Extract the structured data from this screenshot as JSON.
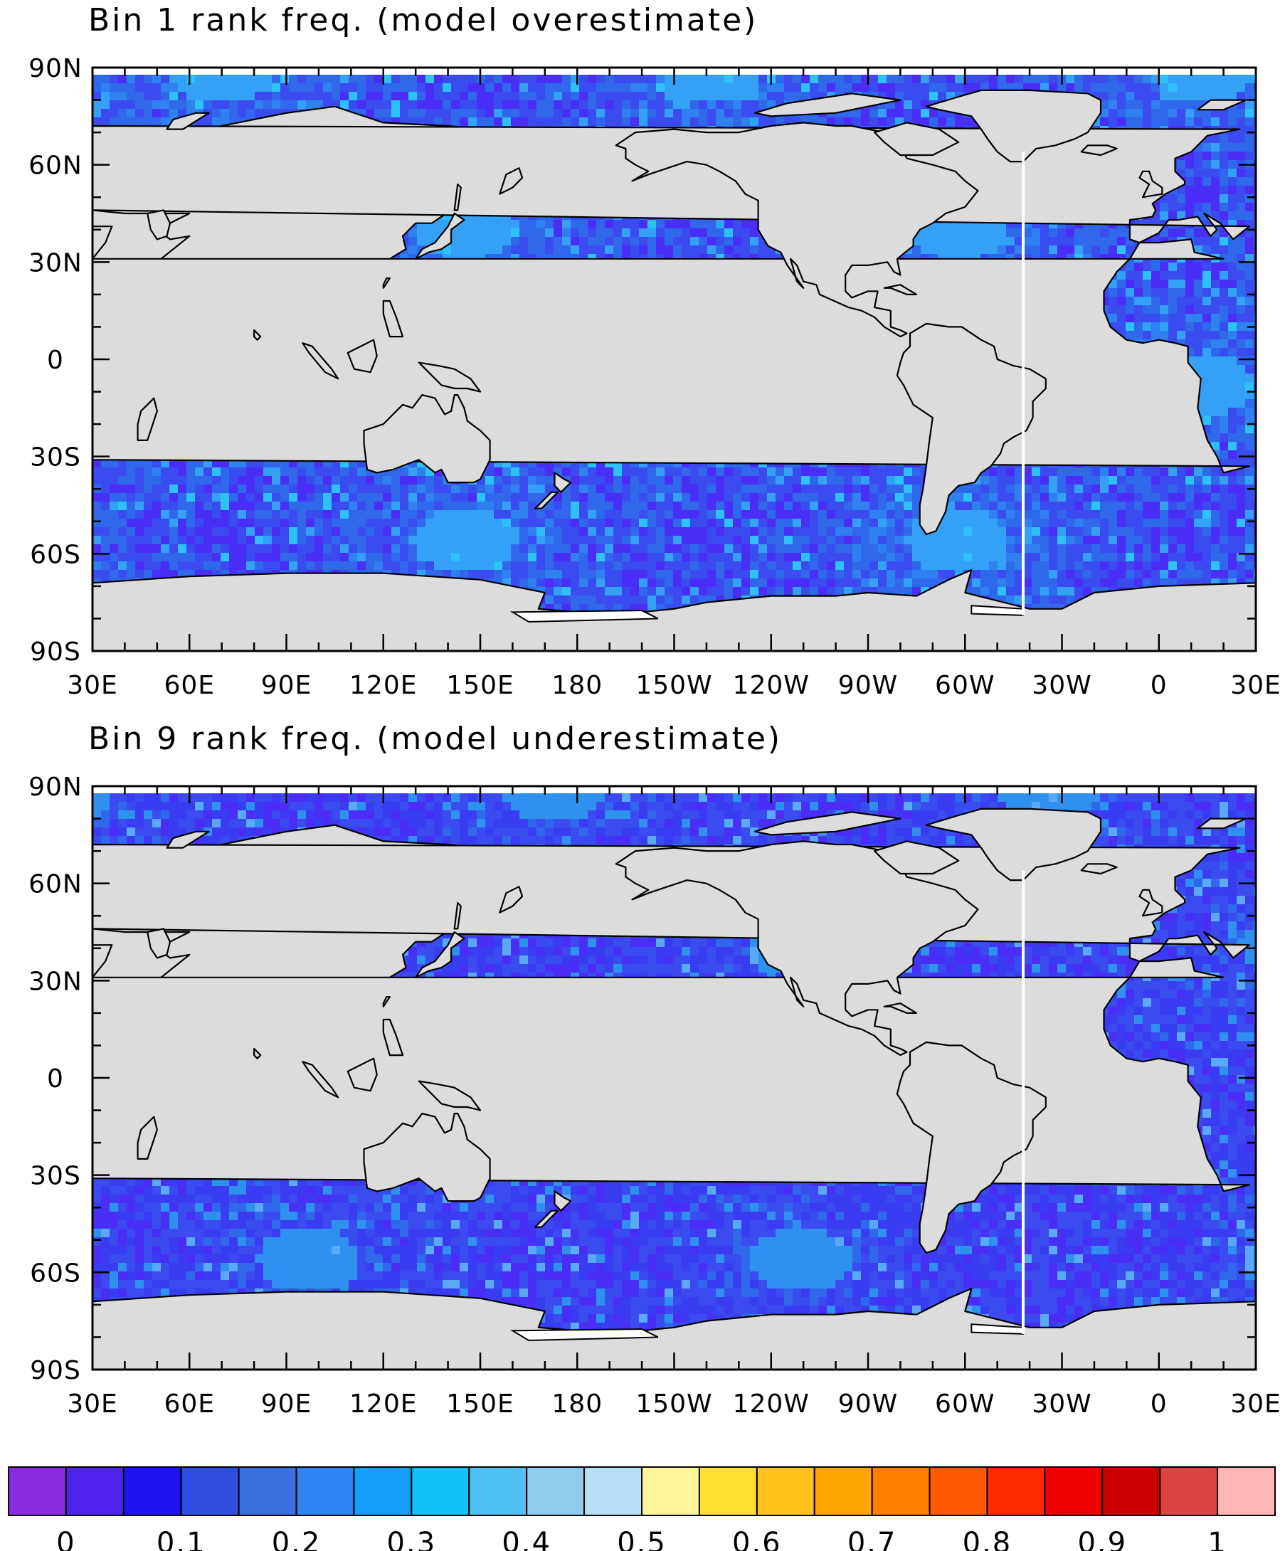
{
  "panels": [
    {
      "id": "bin1",
      "title": "Bin 1 rank freq. (model overestimate)",
      "ocean_colors": [
        "#4a2ef5",
        "#3a4cf0",
        "#3068ec",
        "#2f80f0"
      ],
      "highlight_colors": [
        "#34a0f6",
        "#2ec0f8"
      ],
      "gap_longitude": -42
    },
    {
      "id": "bin9",
      "title": "Bin 9 rank freq. (model underestimate)",
      "ocean_colors": [
        "#4a2ef5",
        "#3a4cf0",
        "#3a3cf2",
        "#3068ec"
      ],
      "highlight_colors": [
        "#3090f0",
        "#5aa8f8"
      ],
      "gap_longitude": -42
    }
  ],
  "axes": {
    "lon_ticks": [
      "30E",
      "60E",
      "90E",
      "120E",
      "150E",
      "180",
      "150W",
      "120W",
      "90W",
      "60W",
      "30W",
      "0",
      "30E"
    ],
    "lat_ticks": [
      "90N",
      "60N",
      "30N",
      "0",
      "30S",
      "60S",
      "90S"
    ]
  },
  "colorbar": {
    "colors": [
      "#8a2be2",
      "#4f22f0",
      "#1d15f0",
      "#2e4ee0",
      "#3a6ee0",
      "#2f84f4",
      "#159ef8",
      "#12c2f6",
      "#4fc1f3",
      "#8ecbee",
      "#b6def6",
      "#fff59a",
      "#ffdf33",
      "#ffc21a",
      "#ffa500",
      "#ff7f00",
      "#ff5a00",
      "#ff2a00",
      "#ef0000",
      "#cc0000",
      "#de4444",
      "#ffb6b6"
    ],
    "labels": [
      "0",
      "0.1",
      "0.2",
      "0.3",
      "0.4",
      "0.5",
      "0.6",
      "0.7",
      "0.8",
      "0.9",
      "1"
    ]
  },
  "map_colors": {
    "land": "#dcdcdc",
    "coast": "#000000",
    "ice_shelf": "#ffffff"
  }
}
